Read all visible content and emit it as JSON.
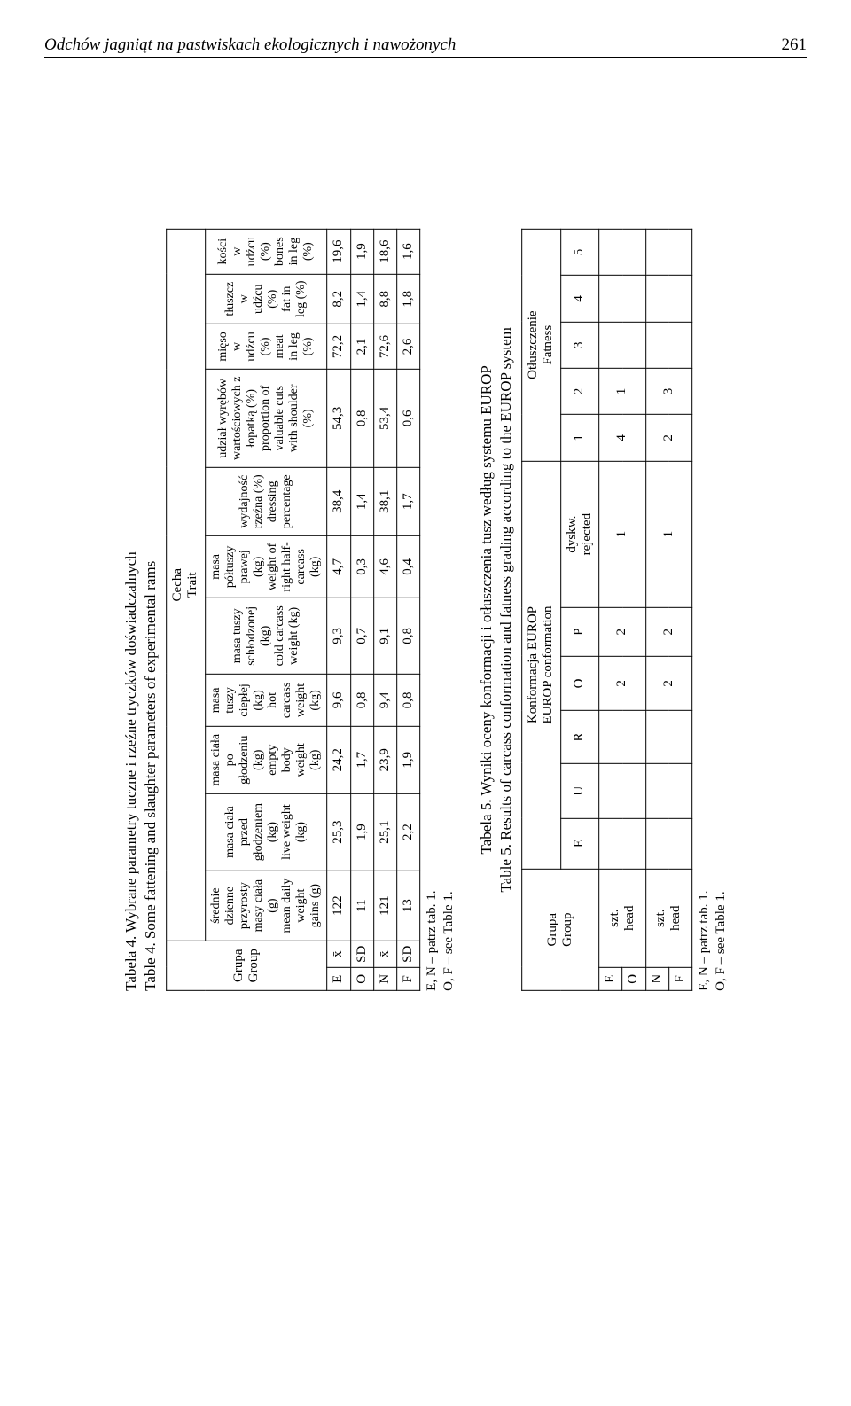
{
  "header": {
    "title": "Odchów jagniąt na pastwiskach ekologicznych i nawożonych",
    "page": "261"
  },
  "table4": {
    "caption_l1": "Tabela 4. Wybrane parametry tuczne i rzeźne tryczków doświadczalnych",
    "caption_l2": "Table 4. Some fattening and slaughter parameters of experimental rams",
    "group_hdr_pl": "Grupa",
    "group_hdr_en": "Group",
    "trait_hdr_pl": "Cecha",
    "trait_hdr_en": "Trait",
    "cols": {
      "c1": "średnie dzienne przyrosty masy ciała (g)\nmean daily weight gains (g)",
      "c2": "masa ciała przed głodzeniem (kg)\nlive weight (kg)",
      "c3": "masa ciała po głodzeniu (kg)\nempty body weight (kg)",
      "c4": "masa tuszy ciepłej (kg)\nhot carcass weight (kg)",
      "c5": "masa tuszy schłodzonej (kg)\ncold carcass weight (kg)",
      "c6": "masa półtuszy prawej (kg)\nweight of right half-carcass (kg)",
      "c7": "wydajność rzeźna (%)\ndressing percentage",
      "c8": "udział wyrębów wartościowych z łopatką (%)\nproportion of valuable cuts with shoulder (%)",
      "c9": "mięso w udźcu (%)\nmeat in leg (%)",
      "c10": "tłuszcz w udźcu (%)\nfat in leg (%)",
      "c11": "kości w udźcu (%)\nbones in leg (%)"
    },
    "rows": [
      {
        "group": "E",
        "stat": "x̄",
        "v": [
          "122",
          "25,3",
          "24,2",
          "9,6",
          "9,3",
          "4,7",
          "38,4",
          "54,3",
          "72,2",
          "8,2",
          "19,6"
        ]
      },
      {
        "group": "O",
        "stat": "SD",
        "v": [
          "11",
          "1,9",
          "1,7",
          "0,8",
          "0,7",
          "0,3",
          "1,4",
          "0,8",
          "2,1",
          "1,4",
          "1,9"
        ]
      },
      {
        "group": "N",
        "stat": "x̄",
        "v": [
          "121",
          "25,1",
          "23,9",
          "9,4",
          "9,1",
          "4,6",
          "38,1",
          "53,4",
          "72,6",
          "8,8",
          "18,6"
        ]
      },
      {
        "group": "F",
        "stat": "SD",
        "v": [
          "13",
          "2,2",
          "1,9",
          "0,8",
          "0,8",
          "0,4",
          "1,7",
          "0,6",
          "2,6",
          "1,8",
          "1,6"
        ]
      }
    ],
    "foot_l1": "E, N – patrz tab. 1.",
    "foot_l2": "O, F – see Table 1."
  },
  "table5": {
    "caption_l1": "Tabela 5. Wyniki oceny konformacji i otłuszczenia tusz według systemu EUROP",
    "caption_l2": "Table 5. Results of carcass conformation and fatness grading according to the EUROP system",
    "group_hdr_pl": "Grupa",
    "group_hdr_en": "Group",
    "conf_hdr_pl": "Konformacja EUROP",
    "conf_hdr_en": "EUROP conformation",
    "fat_hdr_pl": "Otłuszczenie",
    "fat_hdr_en": "Fatness",
    "conf_cols": [
      "E",
      "U",
      "R",
      "O",
      "P",
      "dyskw.\nrejected"
    ],
    "fat_cols": [
      "1",
      "2",
      "3",
      "4",
      "5"
    ],
    "rows": [
      {
        "group": "E",
        "sub_pl": "szt.",
        "sub_en": "head",
        "cv": [
          "",
          "",
          "",
          "2",
          "2",
          "1"
        ],
        "fv": [
          "4",
          "1",
          "",
          "",
          ""
        ]
      },
      {
        "group": "O",
        "sub_pl": "",
        "sub_en": "",
        "cv": [
          "",
          "",
          "",
          "",
          "",
          ""
        ],
        "fv": [
          "",
          "",
          "",
          "",
          ""
        ]
      },
      {
        "group": "N",
        "sub_pl": "szt.",
        "sub_en": "head",
        "cv": [
          "",
          "",
          "",
          "2",
          "2",
          "1"
        ],
        "fv": [
          "2",
          "3",
          "",
          "",
          ""
        ]
      },
      {
        "group": "F",
        "sub_pl": "",
        "sub_en": "",
        "cv": [
          "",
          "",
          "",
          "",
          "",
          ""
        ],
        "fv": [
          "",
          "",
          "",
          "",
          ""
        ]
      }
    ],
    "foot_l1": "E, N – patrz tab. 1.",
    "foot_l2": "O, F – see Table 1."
  }
}
